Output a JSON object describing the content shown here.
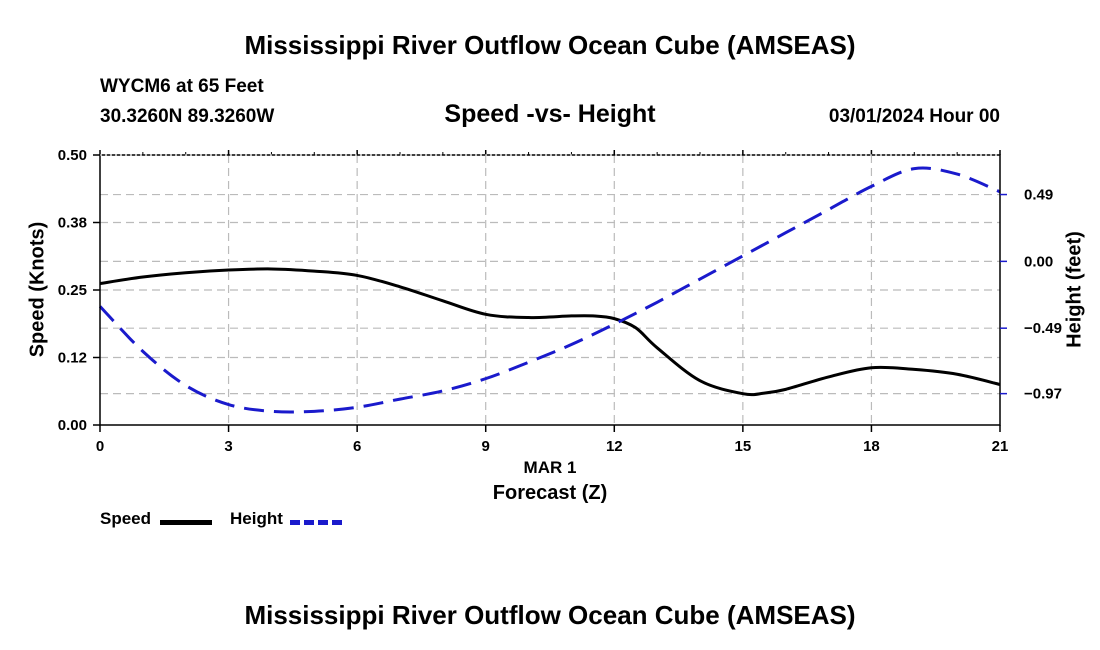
{
  "header": {
    "main_title": "Mississippi River Outflow Ocean Cube (AMSEAS)",
    "station": "WYCM6 at 65 Feet",
    "coords": "30.3260N  89.3260W",
    "chart_title": "Speed -vs- Height",
    "datetime": "03/01/2024 Hour 00"
  },
  "footer": {
    "main_title": "Mississippi River Outflow Ocean Cube (AMSEAS)"
  },
  "colors": {
    "speed": "#000000",
    "height": "#1a1acc",
    "grid": "#bbbbbb"
  },
  "chart_data": {
    "type": "line",
    "title": "Speed -vs- Height",
    "xlabel": "Forecast (Z)",
    "xsublabel": "MAR 1",
    "ylabel": "Speed (Knots)",
    "y2label": "Height (feet)",
    "x_ticks": [
      0,
      3,
      6,
      9,
      12,
      15,
      18,
      21
    ],
    "x_tick_labels": [
      "0",
      "3",
      "6",
      "9",
      "12",
      "15",
      "18",
      "21"
    ],
    "xlim": [
      0,
      21
    ],
    "ylim": [
      0,
      0.5
    ],
    "y_ticks": [
      0,
      0.125,
      0.25,
      0.375,
      0.5
    ],
    "y_tick_labels": [
      "0.00",
      "0.12",
      "0.25",
      "0.38",
      "0.50"
    ],
    "y2lim": [
      -1.2,
      0.78
    ],
    "y2_ticks": [
      -0.97,
      -0.49,
      0.0,
      0.49
    ],
    "y2_tick_labels": [
      "−0.97",
      "−0.49",
      "0.00",
      "0.49"
    ],
    "series": [
      {
        "name": "Speed",
        "axis": "left",
        "style": "solid",
        "x": [
          0,
          1,
          2,
          3,
          4,
          5,
          6,
          7,
          8,
          9,
          10,
          11,
          11.5,
          12,
          12.5,
          13,
          14,
          15,
          15.5,
          16,
          17,
          18,
          19,
          20,
          21
        ],
        "values": [
          0.262,
          0.274,
          0.282,
          0.287,
          0.289,
          0.285,
          0.277,
          0.256,
          0.23,
          0.205,
          0.199,
          0.202,
          0.202,
          0.197,
          0.18,
          0.143,
          0.082,
          0.058,
          0.059,
          0.066,
          0.089,
          0.106,
          0.103,
          0.094,
          0.075
        ]
      },
      {
        "name": "Height",
        "axis": "right",
        "style": "dashed",
        "x": [
          0,
          1,
          2,
          3,
          4,
          5,
          6,
          7,
          8,
          9,
          10,
          11,
          12,
          13,
          14,
          15,
          16,
          17,
          18,
          19,
          20,
          21
        ],
        "values": [
          -0.33,
          -0.66,
          -0.91,
          -1.05,
          -1.1,
          -1.1,
          -1.07,
          -1.01,
          -0.95,
          -0.86,
          -0.74,
          -0.61,
          -0.46,
          -0.3,
          -0.13,
          0.04,
          0.21,
          0.38,
          0.55,
          0.68,
          0.64,
          0.51
        ]
      }
    ],
    "legend": [
      {
        "label": "Speed"
      },
      {
        "label": "Height"
      }
    ]
  }
}
